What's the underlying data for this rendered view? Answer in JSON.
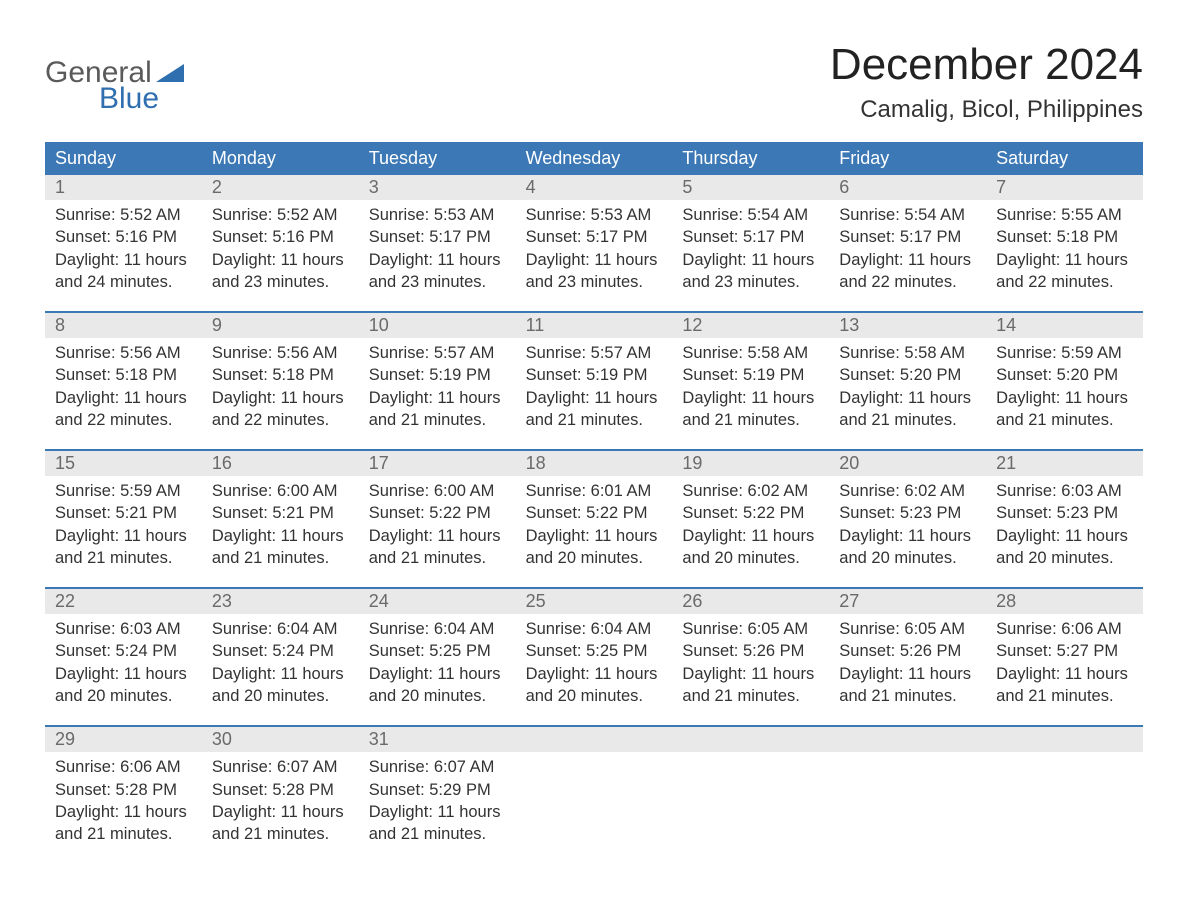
{
  "logo": {
    "word1": "General",
    "word2": "Blue",
    "flag_color": "#2f6fb0",
    "text_gray": "#5a5a5a"
  },
  "title": "December 2024",
  "location": "Camalig, Bicol, Philippines",
  "colors": {
    "header_blue": "#3b78b5",
    "band_gray": "#e9e9e9",
    "rule_blue": "#3b78b5",
    "text": "#333333",
    "daynum": "#6a6a6a",
    "background": "#ffffff"
  },
  "weekdays": [
    "Sunday",
    "Monday",
    "Tuesday",
    "Wednesday",
    "Thursday",
    "Friday",
    "Saturday"
  ],
  "labels": {
    "sunrise": "Sunrise",
    "sunset": "Sunset",
    "daylight": "Daylight"
  },
  "weeks": [
    [
      {
        "n": 1,
        "sr": "5:52 AM",
        "ss": "5:16 PM",
        "dl": "11 hours and 24 minutes."
      },
      {
        "n": 2,
        "sr": "5:52 AM",
        "ss": "5:16 PM",
        "dl": "11 hours and 23 minutes."
      },
      {
        "n": 3,
        "sr": "5:53 AM",
        "ss": "5:17 PM",
        "dl": "11 hours and 23 minutes."
      },
      {
        "n": 4,
        "sr": "5:53 AM",
        "ss": "5:17 PM",
        "dl": "11 hours and 23 minutes."
      },
      {
        "n": 5,
        "sr": "5:54 AM",
        "ss": "5:17 PM",
        "dl": "11 hours and 23 minutes."
      },
      {
        "n": 6,
        "sr": "5:54 AM",
        "ss": "5:17 PM",
        "dl": "11 hours and 22 minutes."
      },
      {
        "n": 7,
        "sr": "5:55 AM",
        "ss": "5:18 PM",
        "dl": "11 hours and 22 minutes."
      }
    ],
    [
      {
        "n": 8,
        "sr": "5:56 AM",
        "ss": "5:18 PM",
        "dl": "11 hours and 22 minutes."
      },
      {
        "n": 9,
        "sr": "5:56 AM",
        "ss": "5:18 PM",
        "dl": "11 hours and 22 minutes."
      },
      {
        "n": 10,
        "sr": "5:57 AM",
        "ss": "5:19 PM",
        "dl": "11 hours and 21 minutes."
      },
      {
        "n": 11,
        "sr": "5:57 AM",
        "ss": "5:19 PM",
        "dl": "11 hours and 21 minutes."
      },
      {
        "n": 12,
        "sr": "5:58 AM",
        "ss": "5:19 PM",
        "dl": "11 hours and 21 minutes."
      },
      {
        "n": 13,
        "sr": "5:58 AM",
        "ss": "5:20 PM",
        "dl": "11 hours and 21 minutes."
      },
      {
        "n": 14,
        "sr": "5:59 AM",
        "ss": "5:20 PM",
        "dl": "11 hours and 21 minutes."
      }
    ],
    [
      {
        "n": 15,
        "sr": "5:59 AM",
        "ss": "5:21 PM",
        "dl": "11 hours and 21 minutes."
      },
      {
        "n": 16,
        "sr": "6:00 AM",
        "ss": "5:21 PM",
        "dl": "11 hours and 21 minutes."
      },
      {
        "n": 17,
        "sr": "6:00 AM",
        "ss": "5:22 PM",
        "dl": "11 hours and 21 minutes."
      },
      {
        "n": 18,
        "sr": "6:01 AM",
        "ss": "5:22 PM",
        "dl": "11 hours and 20 minutes."
      },
      {
        "n": 19,
        "sr": "6:02 AM",
        "ss": "5:22 PM",
        "dl": "11 hours and 20 minutes."
      },
      {
        "n": 20,
        "sr": "6:02 AM",
        "ss": "5:23 PM",
        "dl": "11 hours and 20 minutes."
      },
      {
        "n": 21,
        "sr": "6:03 AM",
        "ss": "5:23 PM",
        "dl": "11 hours and 20 minutes."
      }
    ],
    [
      {
        "n": 22,
        "sr": "6:03 AM",
        "ss": "5:24 PM",
        "dl": "11 hours and 20 minutes."
      },
      {
        "n": 23,
        "sr": "6:04 AM",
        "ss": "5:24 PM",
        "dl": "11 hours and 20 minutes."
      },
      {
        "n": 24,
        "sr": "6:04 AM",
        "ss": "5:25 PM",
        "dl": "11 hours and 20 minutes."
      },
      {
        "n": 25,
        "sr": "6:04 AM",
        "ss": "5:25 PM",
        "dl": "11 hours and 20 minutes."
      },
      {
        "n": 26,
        "sr": "6:05 AM",
        "ss": "5:26 PM",
        "dl": "11 hours and 21 minutes."
      },
      {
        "n": 27,
        "sr": "6:05 AM",
        "ss": "5:26 PM",
        "dl": "11 hours and 21 minutes."
      },
      {
        "n": 28,
        "sr": "6:06 AM",
        "ss": "5:27 PM",
        "dl": "11 hours and 21 minutes."
      }
    ],
    [
      {
        "n": 29,
        "sr": "6:06 AM",
        "ss": "5:28 PM",
        "dl": "11 hours and 21 minutes."
      },
      {
        "n": 30,
        "sr": "6:07 AM",
        "ss": "5:28 PM",
        "dl": "11 hours and 21 minutes."
      },
      {
        "n": 31,
        "sr": "6:07 AM",
        "ss": "5:29 PM",
        "dl": "11 hours and 21 minutes."
      },
      null,
      null,
      null,
      null
    ]
  ]
}
